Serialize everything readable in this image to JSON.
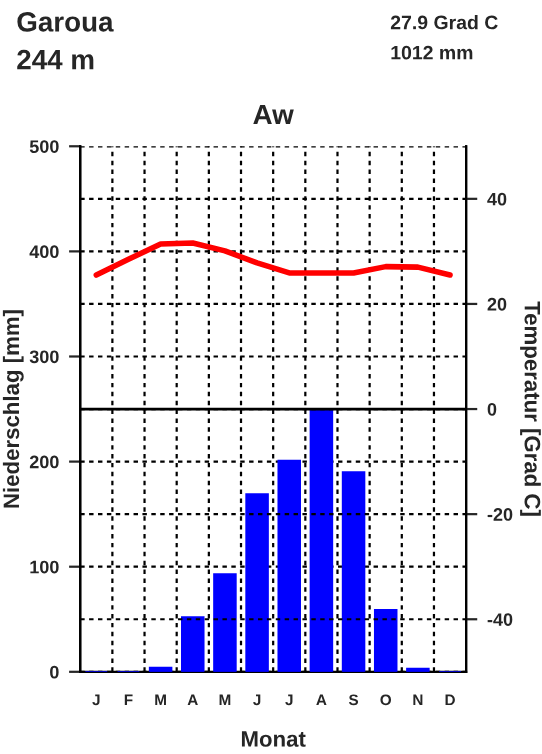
{
  "chart_data": {
    "type": "bar",
    "title": "Aw",
    "xlabel": "Monat",
    "ylabel": "Niederschlag [mm]",
    "y2label": "Temperatur [Grad C]",
    "annotations": [
      "Garoua",
      "244 m",
      "27.9 Grad C",
      "1012 mm"
    ],
    "categories": [
      "J",
      "F",
      "M",
      "A",
      "M",
      "J",
      "J",
      "A",
      "S",
      "O",
      "N",
      "D"
    ],
    "series": [
      {
        "color": "#0000ff",
        "values": [
          0,
          0,
          4,
          52,
          93,
          169,
          201,
          250,
          190,
          59,
          3,
          0
        ]
      },
      {
        "type": "line",
        "axis": "y2",
        "color": "#ff0000",
        "values": [
          25.5,
          28.5,
          31.4,
          31.6,
          30.1,
          27.8,
          25.9,
          25.9,
          25.9,
          27.1,
          27.0,
          25.5
        ]
      }
    ],
    "ylim": [
      0,
      500
    ],
    "yticks": [
      0,
      100,
      200,
      300,
      400,
      500
    ],
    "y2lim": [
      -50,
      50
    ],
    "y2ticks": [
      -40,
      -20,
      0,
      20,
      40
    ],
    "ref_lines": [
      {
        "axis": "y2",
        "value": 0,
        "color": "#000000",
        "line_style": "solid"
      }
    ],
    "grid": true,
    "legend": false,
    "marker": "none",
    "line_style": "solid"
  }
}
